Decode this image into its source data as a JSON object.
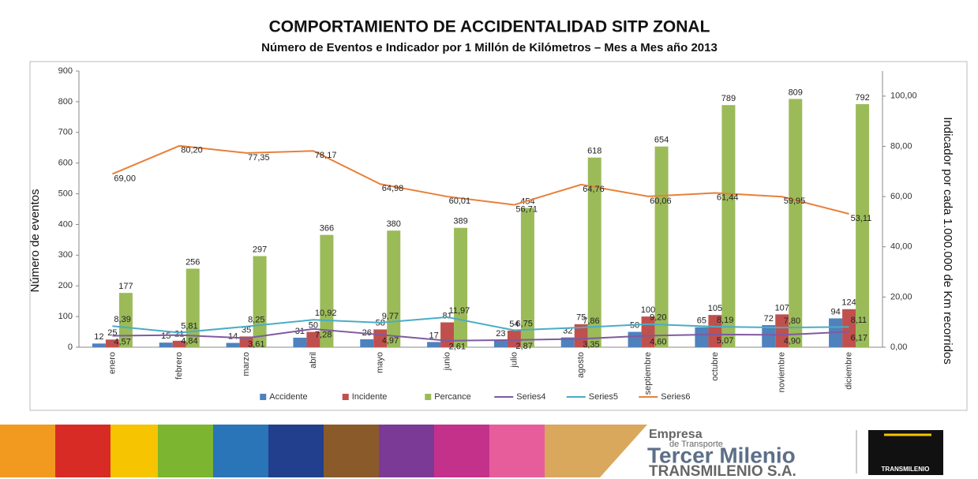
{
  "chart_data": {
    "type": "combo",
    "title": "COMPORTAMIENTO DE ACCIDENTALIDAD SITP ZONAL",
    "subtitle": "Número de Eventos e Indicador por 1 Millón de Kilómetros – Mes a Mes año 2013",
    "y_label": "Número de eventos",
    "y2_label": "Indicador por cada 1.000.000 de Km recorridos",
    "categories": [
      "enero",
      "febrero",
      "marzo",
      "abril",
      "mayo",
      "junio",
      "julio",
      "agosto",
      "septiembre",
      "octubre",
      "noviembre",
      "diciembre"
    ],
    "ylim": [
      0,
      900
    ],
    "yticks": [
      0,
      100,
      200,
      300,
      400,
      500,
      600,
      700,
      800,
      900
    ],
    "y2lim": [
      0,
      110
    ],
    "y2ticks": [
      {
        "value": 0,
        "label": "0,00"
      },
      {
        "value": 20,
        "label": "20,00"
      },
      {
        "value": 40,
        "label": "40,00"
      },
      {
        "value": 60,
        "label": "60,00"
      },
      {
        "value": 80,
        "label": "80,00"
      },
      {
        "value": 100,
        "label": "100,00"
      }
    ],
    "grid": false,
    "legend": "bottom",
    "series": [
      {
        "name": "Accidente",
        "type": "bar",
        "color": "#4f81bd",
        "values": [
          12,
          15,
          14,
          31,
          26,
          17,
          23,
          32,
          50,
          65,
          72,
          94
        ]
      },
      {
        "name": "Incidente",
        "type": "bar",
        "color": "#c0504d",
        "values": [
          25,
          21,
          35,
          50,
          58,
          81,
          54,
          75,
          100,
          105,
          107,
          124
        ]
      },
      {
        "name": "Percance",
        "type": "bar",
        "color": "#9bbb59",
        "values": [
          177,
          256,
          297,
          366,
          380,
          389,
          454,
          618,
          654,
          789,
          809,
          792
        ]
      },
      {
        "name": "Series4",
        "type": "line",
        "axis": "y2",
        "color": "#7f5a9f",
        "values": [
          4.57,
          4.84,
          3.61,
          7.28,
          4.97,
          2.61,
          2.87,
          3.35,
          4.6,
          5.07,
          4.9,
          6.17
        ],
        "value_labels": [
          "4,57",
          "4,84",
          "3,61",
          "7,28",
          "4,97",
          "2,61",
          "2,87",
          "3,35",
          "4,60",
          "5,07",
          "4,90",
          "6,17"
        ]
      },
      {
        "name": "Series5",
        "type": "line",
        "axis": "y2",
        "color": "#4bacc6",
        "values": [
          8.39,
          5.81,
          8.25,
          10.92,
          9.77,
          11.97,
          6.75,
          7.86,
          9.2,
          8.19,
          7.8,
          8.11
        ],
        "value_labels": [
          "8,39",
          "5,81",
          "8,25",
          "10,92",
          "9,77",
          "11,97",
          "6,75",
          "7,86",
          "9,20",
          "8,19",
          "7,80",
          "8,11"
        ]
      },
      {
        "name": "Series6",
        "type": "line",
        "axis": "y2",
        "color": "#e8803a",
        "values": [
          69.0,
          80.2,
          77.35,
          78.17,
          64.98,
          60.01,
          56.71,
          64.76,
          60.06,
          61.44,
          59.95,
          53.11
        ],
        "value_labels": [
          "69,00",
          "80,20",
          "77,35",
          "78,17",
          "64,98",
          "60,01",
          "56,71",
          "64,76",
          "60,06",
          "61,44",
          "59,95",
          "53,11"
        ]
      }
    ]
  },
  "footer": {
    "company_prefix": "Empresa",
    "company_sub": "de Transporte",
    "company_name": "Tercer Milenio",
    "company_legal": "TRANSMILENIO S.A.",
    "logo_text": "TRANSMILENIO"
  }
}
